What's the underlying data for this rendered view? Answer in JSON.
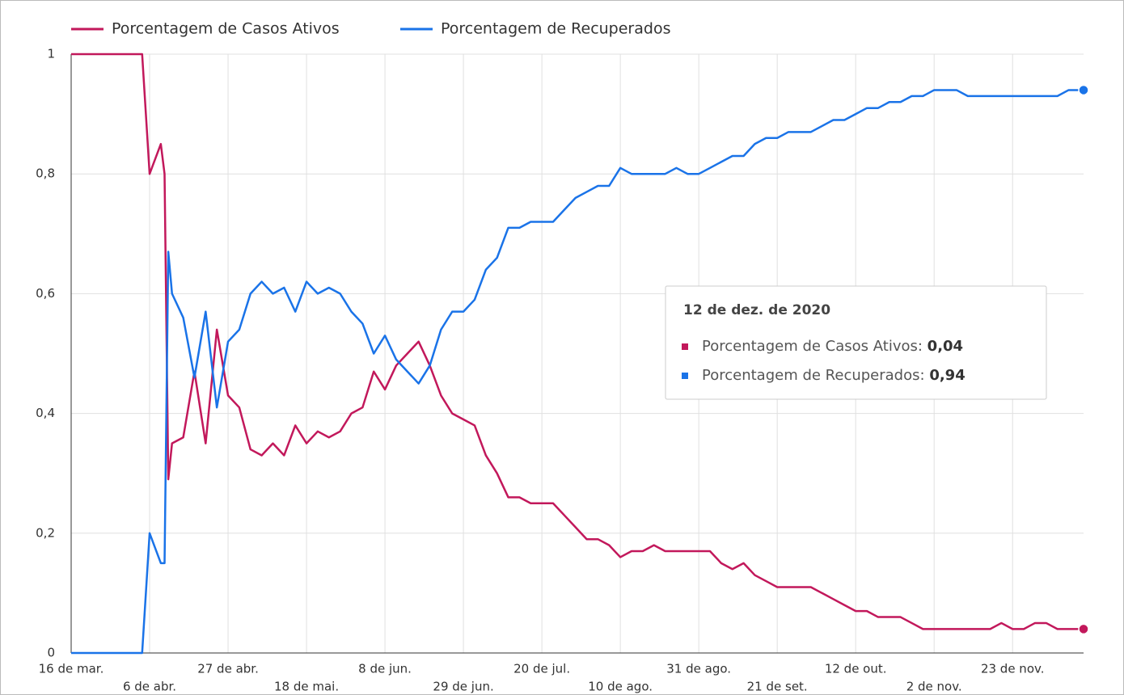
{
  "chart_data": {
    "type": "line",
    "series": [
      {
        "name": "Porcentagem de Casos Ativos",
        "color": "#c2185b",
        "values": [
          1,
          1,
          1,
          1,
          1,
          1,
          1,
          1,
          0.8,
          0.85,
          0.8,
          0.29,
          0.35,
          0.36,
          0.47,
          0.35,
          0.54,
          0.43,
          0.41,
          0.34,
          0.33,
          0.35,
          0.33,
          0.38,
          0.35,
          0.37,
          0.36,
          0.37,
          0.4,
          0.41,
          0.47,
          0.44,
          0.48,
          0.5,
          0.52,
          0.48,
          0.43,
          0.4,
          0.39,
          0.38,
          0.33,
          0.3,
          0.26,
          0.26,
          0.25,
          0.25,
          0.25,
          0.23,
          0.21,
          0.19,
          0.19,
          0.18,
          0.16,
          0.17,
          0.17,
          0.18,
          0.17,
          0.17,
          0.17,
          0.17,
          0.17,
          0.15,
          0.14,
          0.15,
          0.13,
          0.12,
          0.11,
          0.11,
          0.11,
          0.11,
          0.1,
          0.09,
          0.08,
          0.07,
          0.07,
          0.06,
          0.06,
          0.06,
          0.05,
          0.04,
          0.04,
          0.04,
          0.04,
          0.04,
          0.04,
          0.04,
          0.05,
          0.04,
          0.04,
          0.05,
          0.05,
          0.04,
          0.04,
          0.04,
          0.04
        ]
      },
      {
        "name": "Porcentagem de Recuperados",
        "color": "#1a73e8",
        "values": [
          0,
          0,
          0,
          0,
          0,
          0,
          0,
          0,
          0.2,
          0.15,
          0.15,
          0.67,
          0.6,
          0.56,
          0.46,
          0.57,
          0.41,
          0.52,
          0.54,
          0.6,
          0.62,
          0.6,
          0.61,
          0.57,
          0.62,
          0.6,
          0.61,
          0.6,
          0.57,
          0.55,
          0.5,
          0.53,
          0.49,
          0.47,
          0.45,
          0.48,
          0.54,
          0.57,
          0.57,
          0.59,
          0.64,
          0.66,
          0.71,
          0.71,
          0.72,
          0.72,
          0.72,
          0.74,
          0.76,
          0.77,
          0.78,
          0.78,
          0.81,
          0.8,
          0.8,
          0.8,
          0.8,
          0.81,
          0.8,
          0.8,
          0.81,
          0.82,
          0.83,
          0.83,
          0.85,
          0.86,
          0.86,
          0.87,
          0.87,
          0.87,
          0.88,
          0.89,
          0.89,
          0.9,
          0.91,
          0.91,
          0.92,
          0.92,
          0.93,
          0.93,
          0.94,
          0.94,
          0.94,
          0.93,
          0.93,
          0.93,
          0.93,
          0.93,
          0.93,
          0.93,
          0.93,
          0.93,
          0.94,
          0.94,
          0.94
        ]
      }
    ],
    "x": [
      0,
      3,
      6,
      9,
      12,
      15,
      18,
      19,
      21,
      24,
      25,
      26,
      27,
      30,
      33,
      36,
      39,
      42,
      45,
      48,
      51,
      54,
      57,
      60,
      63,
      66,
      69,
      72,
      75,
      78,
      81,
      84,
      87,
      90,
      93,
      96,
      99,
      102,
      105,
      108,
      111,
      114,
      117,
      120,
      123,
      126,
      129,
      132,
      135,
      138,
      141,
      144,
      147,
      150,
      153,
      156,
      159,
      162,
      165,
      168,
      171,
      174,
      177,
      180,
      183,
      186,
      189,
      192,
      195,
      198,
      201,
      204,
      207,
      210,
      213,
      216,
      219,
      222,
      225,
      228,
      231,
      234,
      237,
      240,
      243,
      246,
      249,
      252,
      255,
      258,
      261,
      264,
      267,
      270,
      271
    ],
    "xlim": [
      0,
      271
    ],
    "xticks": [
      {
        "value": 0,
        "label": "16 de mar."
      },
      {
        "value": 21,
        "label": "6 de abr."
      },
      {
        "value": 42,
        "label": "27 de abr."
      },
      {
        "value": 63,
        "label": "18 de mai."
      },
      {
        "value": 84,
        "label": "8 de jun."
      },
      {
        "value": 105,
        "label": "29 de jun."
      },
      {
        "value": 126,
        "label": "20 de jul."
      },
      {
        "value": 147,
        "label": "10 de ago."
      },
      {
        "value": 168,
        "label": "31 de ago."
      },
      {
        "value": 189,
        "label": "21 de set."
      },
      {
        "value": 210,
        "label": "12 de out."
      },
      {
        "value": 231,
        "label": "2 de nov."
      },
      {
        "value": 252,
        "label": "23 de nov."
      }
    ],
    "ylim": [
      0,
      1
    ],
    "yticks": [
      0,
      {
        "value": 0.2,
        "label": "0,2"
      },
      {
        "value": 0.4,
        "label": "0,4"
      },
      {
        "value": 0.6,
        "label": "0,6"
      },
      {
        "value": 0.8,
        "label": "0,8"
      },
      1
    ],
    "grid": true,
    "legend": "top",
    "tooltip": {
      "title": "12 de dez. de 2020",
      "rows": [
        {
          "label": "Porcentagem de Casos Ativos:",
          "value": "0,04"
        },
        {
          "label": "Porcentagem de Recuperados:",
          "value": "0,94"
        }
      ]
    }
  }
}
